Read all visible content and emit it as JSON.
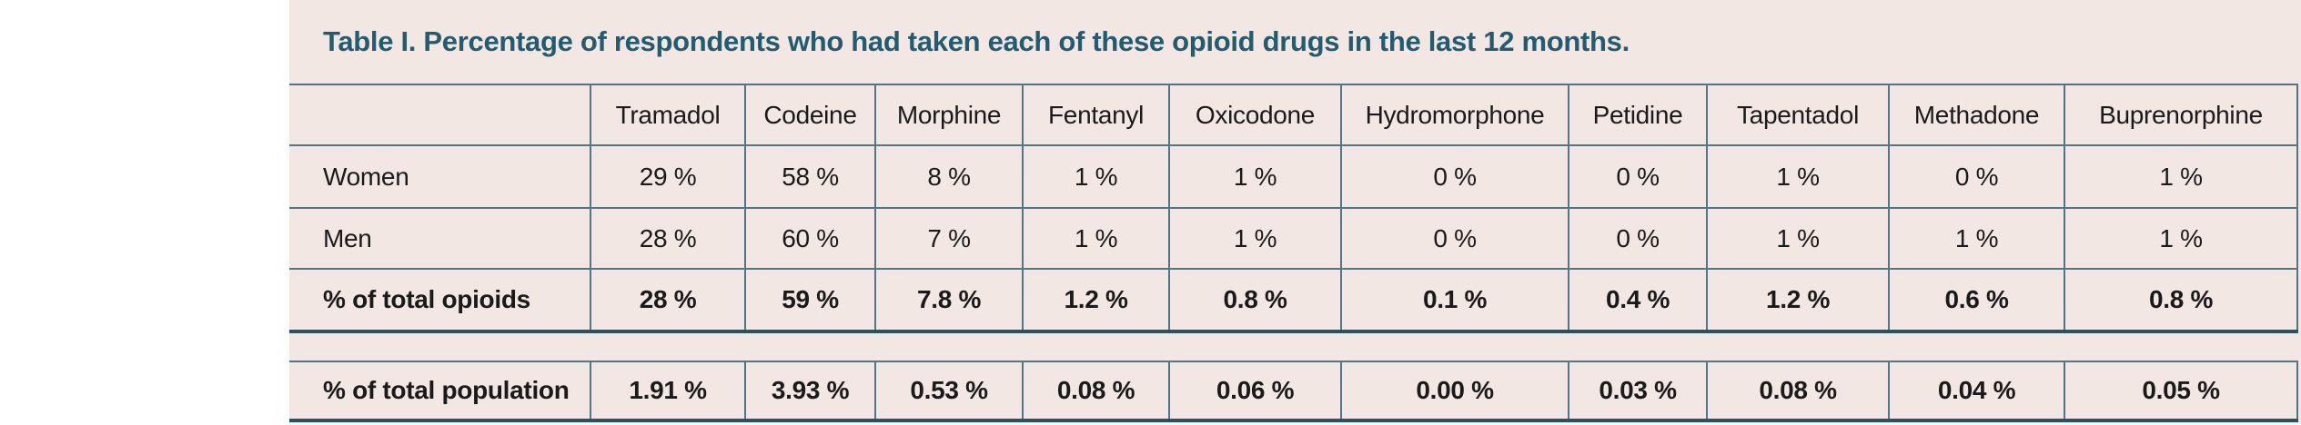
{
  "title": "Table I. Percentage of respondents who had taken each of these opioid drugs in the last 12 months.",
  "colors": {
    "band_background": "#F2E7E3",
    "title_text": "#235C6F",
    "thin_border": "#527687",
    "thick_border": "#265261",
    "cell_text": "#1A1A1A"
  },
  "table": {
    "columns": [
      "Tramadol",
      "Codeine",
      "Morphine",
      "Fentanyl",
      "Oxicodone",
      "Hydromorphone",
      "Petidine",
      "Tapentadol",
      "Methadone",
      "Buprenorphine"
    ],
    "rows": [
      {
        "label": "Women",
        "values": [
          "29 %",
          "58 %",
          "8 %",
          "1 %",
          "1 %",
          "0 %",
          "0 %",
          "1 %",
          "0 %",
          "1 %"
        ]
      },
      {
        "label": "Men",
        "values": [
          "28 %",
          "60 %",
          "7 %",
          "1 %",
          "1 %",
          "0 %",
          "0 %",
          "1 %",
          "1 %",
          "1 %"
        ]
      },
      {
        "label": "% of total opioids",
        "values": [
          "28 %",
          "59 %",
          "7.8 %",
          "1.2 %",
          "0.8 %",
          "0.1 %",
          "0.4 %",
          "1.2 %",
          "0.6 %",
          "0.8 %"
        ]
      }
    ],
    "population_row": {
      "label": "% of total population",
      "values": [
        "1.91 %",
        "3.93 %",
        "0.53 %",
        "0.08 %",
        "0.06 %",
        "0.00 %",
        "0.03 %",
        "0.08 %",
        "0.04 %",
        "0.05 %"
      ]
    }
  }
}
